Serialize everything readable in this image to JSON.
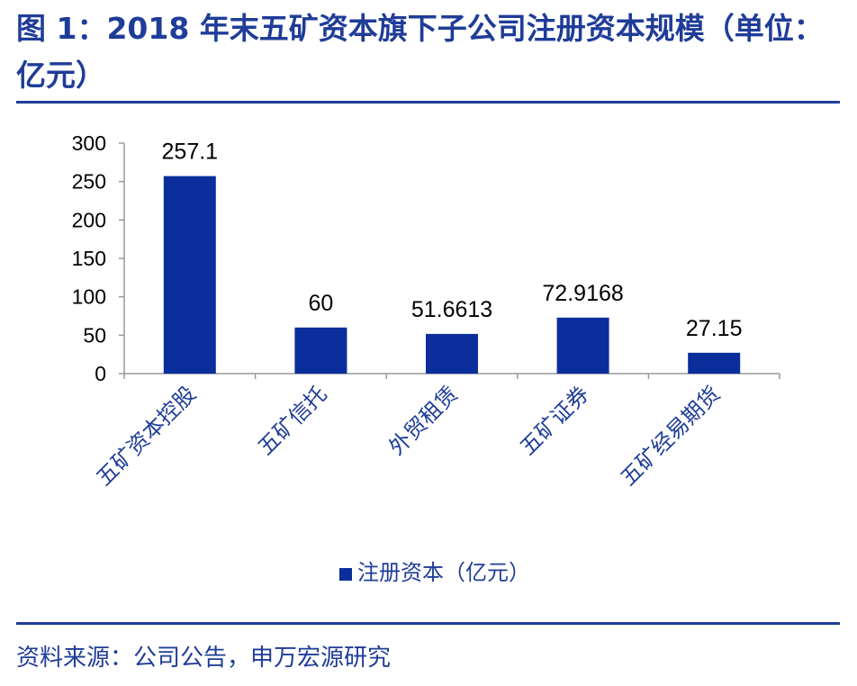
{
  "figure": {
    "title": "图 1：2018 年末五矿资本旗下子公司注册资本规模（单位：亿元）",
    "source": "资料来源：公司公告，申万宏源研究"
  },
  "chart_data": {
    "type": "bar",
    "categories": [
      "五矿资本控股",
      "五矿信托",
      "外贸租赁",
      "五矿证券",
      "五矿经易期货"
    ],
    "series": [
      {
        "name": "注册资本（亿元）",
        "values": [
          257.1,
          60,
          51.6613,
          72.9168,
          27.15
        ],
        "labels": [
          "257.1",
          "60",
          "51.6613",
          "72.9168",
          "27.15"
        ],
        "color": "#0b2e9c"
      }
    ],
    "yticks": [
      "0",
      "50",
      "100",
      "150",
      "200",
      "250",
      "300"
    ],
    "ylim": [
      0,
      300
    ],
    "grid": false,
    "legend_position": "bottom"
  }
}
